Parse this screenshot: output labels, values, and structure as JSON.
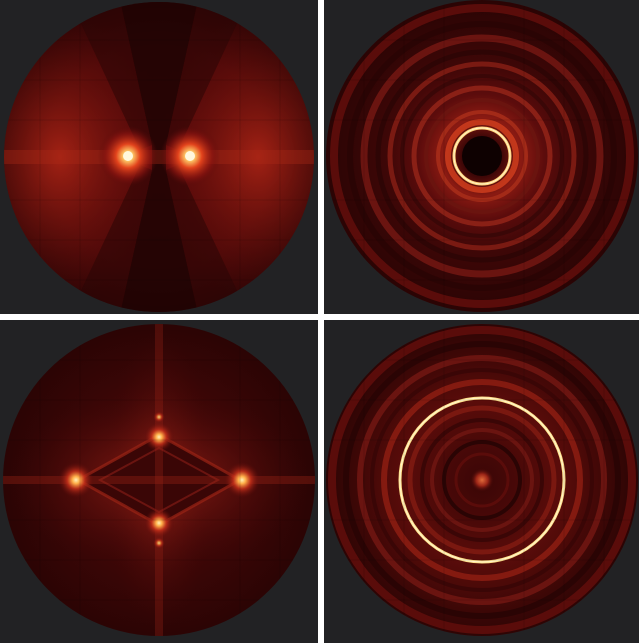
{
  "figure": {
    "layout": "2x2 grid",
    "background_color": "#222224",
    "separator_color": "#ffffff",
    "colormap": [
      "#000000",
      "#3a0505",
      "#8a1010",
      "#c8301a",
      "#ff8a3a",
      "#ffe9a8"
    ],
    "panels": [
      {
        "position": "top-left",
        "pattern": "dipole-lobes"
      },
      {
        "position": "top-right",
        "pattern": "bright-inner-ring"
      },
      {
        "position": "bottom-left",
        "pattern": "four-spot-diamond"
      },
      {
        "position": "bottom-right",
        "pattern": "large-bright-ring"
      }
    ]
  }
}
